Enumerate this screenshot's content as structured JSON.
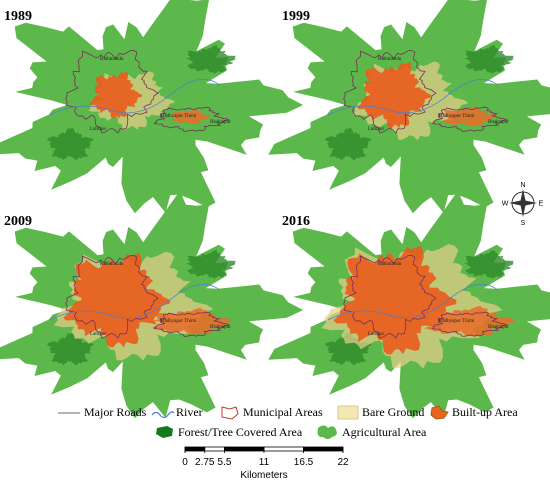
{
  "panels": [
    {
      "year": "1989",
      "places": [
        "Kathmandu",
        "Lalitpur",
        "Madhyapur Thimi",
        "Bhaktapur"
      ]
    },
    {
      "year": "1999",
      "places": [
        "Kathmandu",
        "Lalitpur",
        "Madhyapur Thimi",
        "Bhaktapur"
      ]
    },
    {
      "year": "2009",
      "places": [
        "Kathmandu",
        "Lalitpur",
        "Madhyapur Thimi",
        "Bhaktapur"
      ]
    },
    {
      "year": "2016",
      "places": [
        "Kathmandu",
        "Lalitpur",
        "Madhyapur Thimi",
        "Bhaktapur"
      ]
    }
  ],
  "compass": {
    "north": "N",
    "east": "E",
    "south": "S",
    "west": "W"
  },
  "legend": [
    "Major Roads",
    "River",
    "Municipal Areas",
    "Bare Ground",
    "Built-up Area",
    "Forest/Tree Covered Area",
    "Agricultural Area"
  ],
  "scale_bar": {
    "ticks": [
      0,
      2.75,
      5.5,
      11,
      16.5,
      22
    ],
    "unit": "Kilometers"
  }
}
